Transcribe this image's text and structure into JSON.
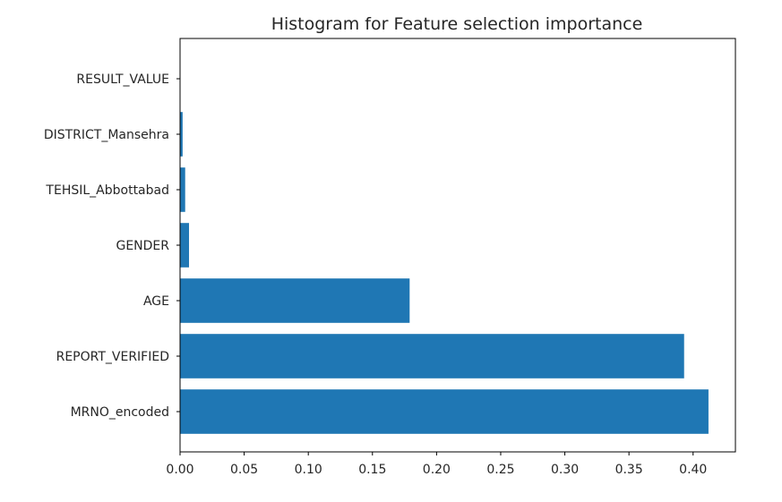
{
  "chart_data": {
    "type": "bar",
    "orientation": "horizontal",
    "title": "Histogram for Feature selection importance",
    "xlabel": "",
    "ylabel": "",
    "categories": [
      "MRNO_encoded",
      "REPORT_VERIFIED",
      "AGE",
      "GENDER",
      "TEHSIL_Abbottabad",
      "DISTRICT_Mansehra",
      "RESULT_VALUE"
    ],
    "values": [
      0.412,
      0.393,
      0.179,
      0.007,
      0.004,
      0.002,
      0.0
    ],
    "xlim": [
      0.0,
      0.433
    ],
    "xticks": [
      "0.00",
      "0.05",
      "0.10",
      "0.15",
      "0.20",
      "0.25",
      "0.30",
      "0.35",
      "0.40"
    ],
    "grid": false,
    "colors": {
      "bar": "#1f77b4"
    }
  }
}
